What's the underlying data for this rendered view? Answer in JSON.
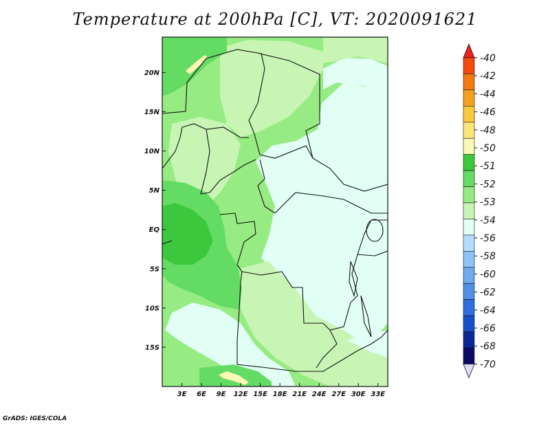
{
  "title": "Temperature at 200hPa [C], VT: 2020091621",
  "credit": "GrADS: IGES/COLA",
  "map": {
    "lat_labels": [
      "20N",
      "15N",
      "10N",
      "5N",
      "EQ",
      "5S",
      "10S",
      "15S"
    ],
    "lat_values": [
      20,
      15,
      10,
      5,
      0,
      -5,
      -10,
      -15
    ],
    "lon_labels": [
      "3E",
      "6E",
      "9E",
      "12E",
      "15E",
      "18E",
      "21E",
      "24E",
      "27E",
      "30E",
      "33E"
    ],
    "lon_values": [
      3,
      6,
      9,
      12,
      15,
      18,
      21,
      24,
      27,
      30,
      33
    ],
    "lat_range": [
      -20,
      24.5
    ],
    "lon_range": [
      0,
      34.5
    ]
  },
  "colorbar": {
    "labels": [
      "-40",
      "-42",
      "-44",
      "-46",
      "-48",
      "-50",
      "-51",
      "-52",
      "-53",
      "-54",
      "-56",
      "-58",
      "-60",
      "-62",
      "-64",
      "-66",
      "-68",
      "-70"
    ],
    "colors": [
      "#f01e1e",
      "#f5490f",
      "#f57a0f",
      "#f5a01e",
      "#fac83c",
      "#fae678",
      "#faf8b4",
      "#3cc83c",
      "#64dc64",
      "#96eb82",
      "#c8f5b4",
      "#e1fff5",
      "#b4dcff",
      "#8cc3fa",
      "#6eaaf0",
      "#5090e6",
      "#2d6ee1",
      "#1450c8",
      "#0a2896",
      "#0a0a64",
      "#dcdcf5"
    ]
  },
  "fields": {
    "background": "#96eb82",
    "dark_green": "#64dc64",
    "darker_green": "#3cc83c",
    "light_green": "#c8f5b4",
    "cyan": "#e1fff5",
    "yellow": "#faf8b4",
    "orange": "#fac83c"
  }
}
